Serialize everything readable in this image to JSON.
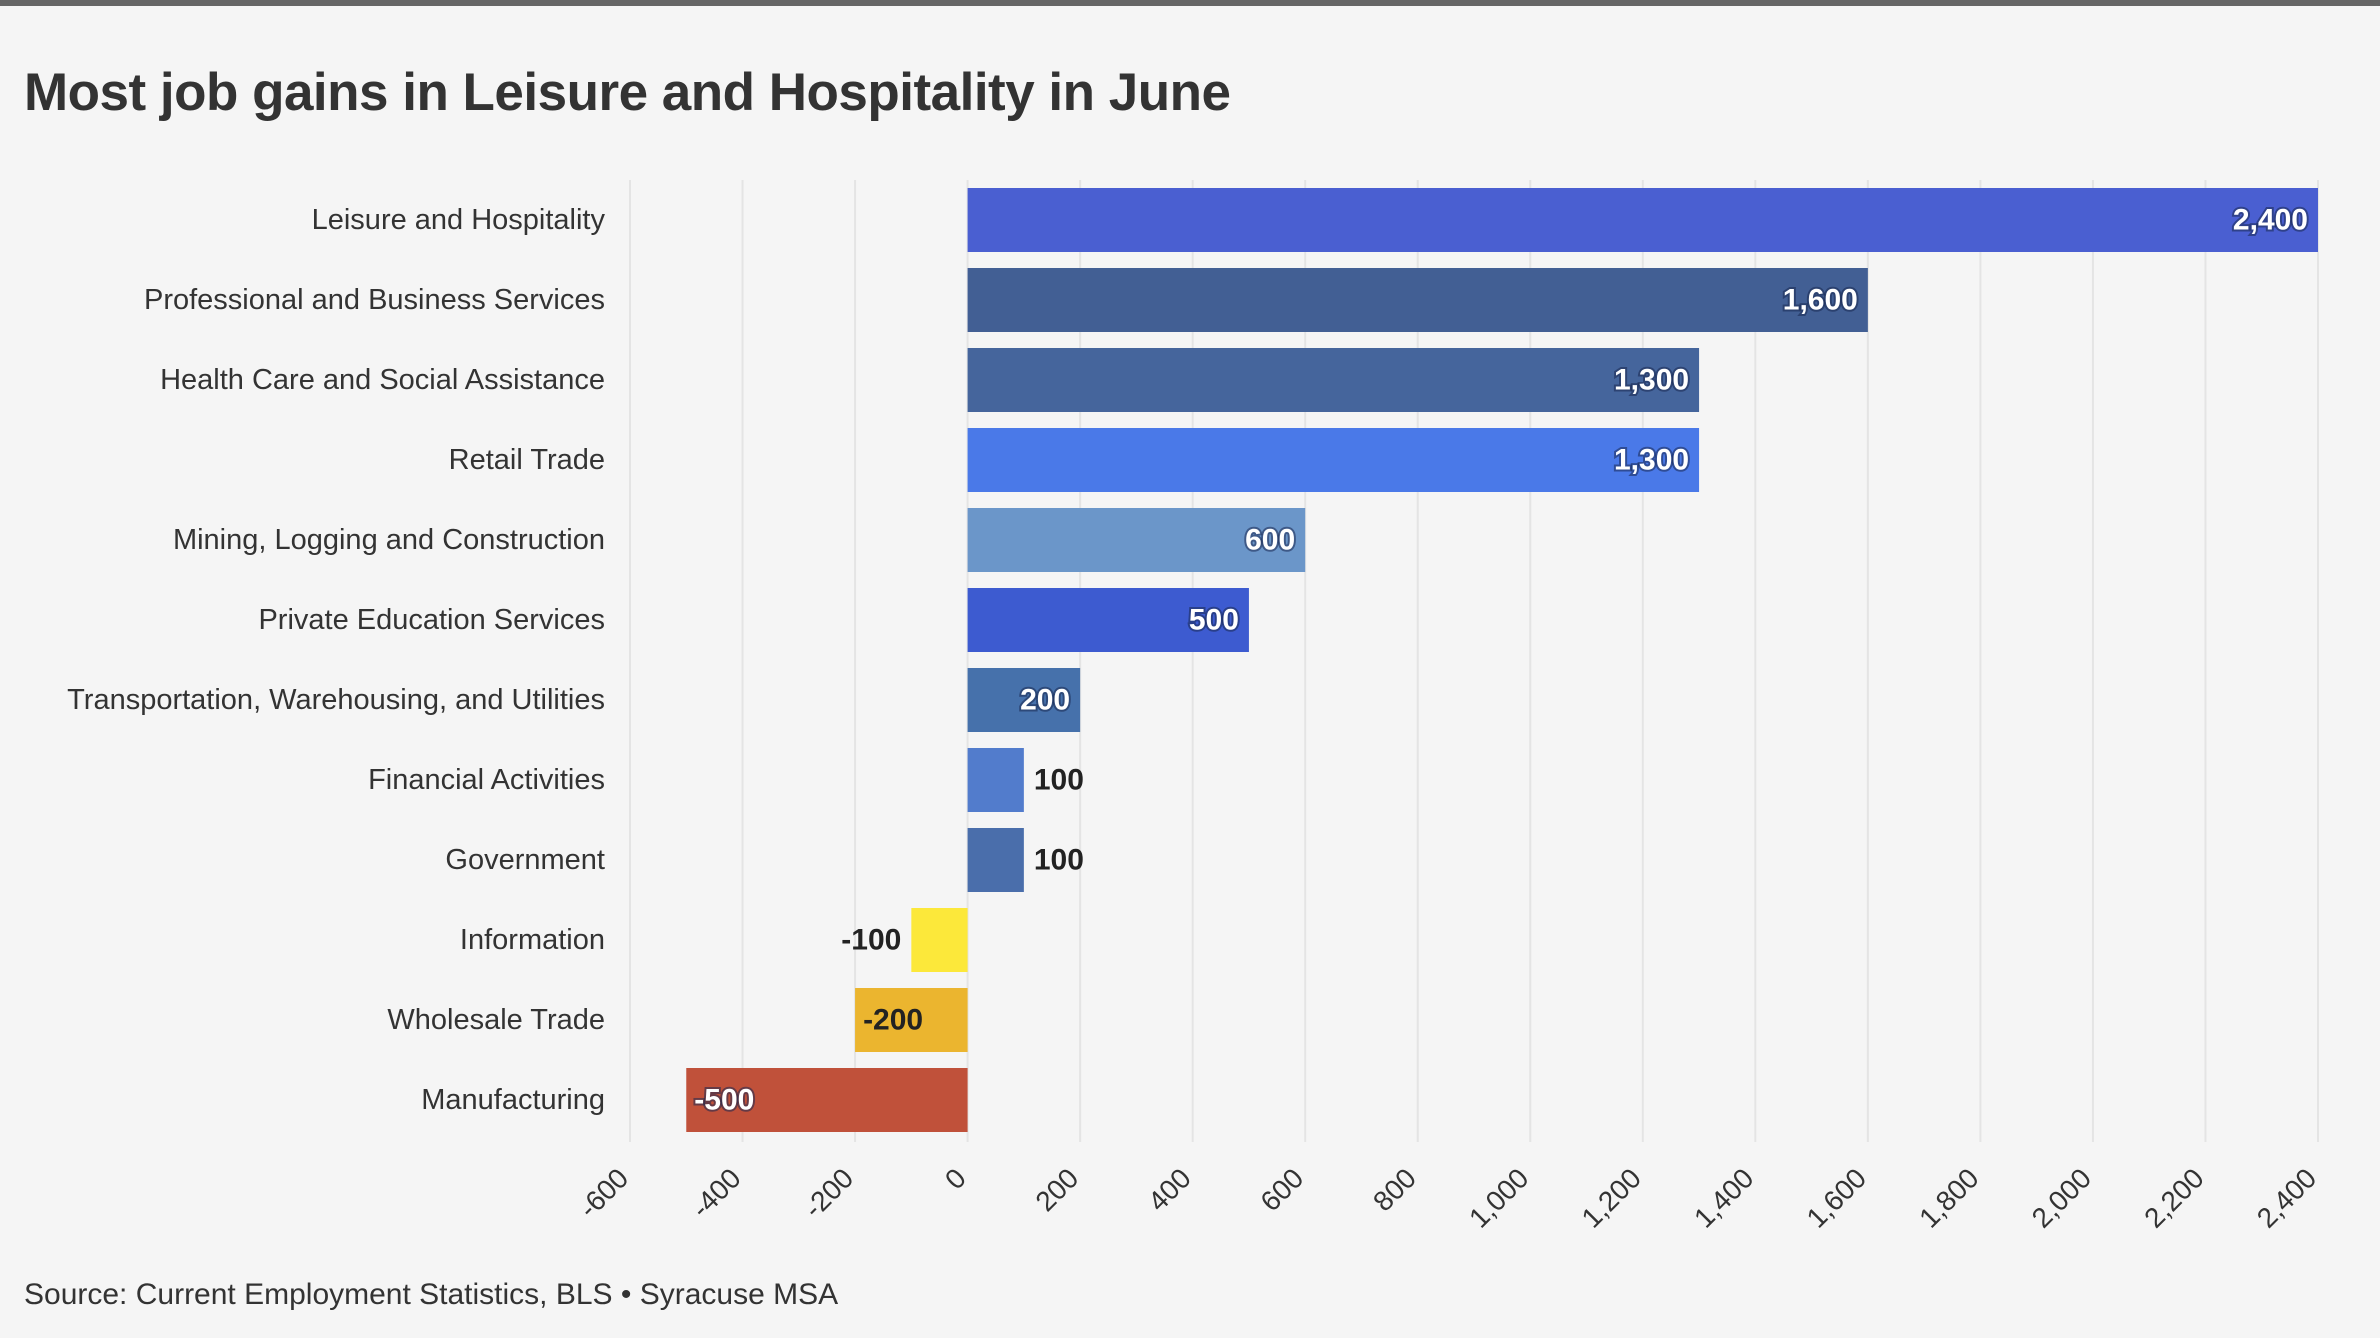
{
  "header": {
    "title": "Most job gains in Leisure and Hospitality in June"
  },
  "footer": {
    "source": "Source: Current Employment Statistics, BLS • Syracuse MSA"
  },
  "chart_data": {
    "type": "bar",
    "orientation": "horizontal",
    "title": "Most job gains in Leisure and Hospitality in June",
    "xlabel": "",
    "ylabel": "",
    "xlim": [
      -600,
      2400
    ],
    "x_ticks": [
      -600,
      -400,
      -200,
      0,
      200,
      400,
      600,
      800,
      1000,
      1200,
      1400,
      1600,
      1800,
      2000,
      2200,
      2400
    ],
    "x_tick_labels": [
      "-600",
      "-400",
      "-200",
      "0",
      "200",
      "400",
      "600",
      "800",
      "1,000",
      "1,200",
      "1,400",
      "1,600",
      "1,800",
      "2,000",
      "2,200",
      "2,400"
    ],
    "grid": true,
    "categories": [
      "Leisure and Hospitality",
      "Professional and Business Services",
      "Health Care and Social Assistance",
      "Retail Trade",
      "Mining, Logging and Construction",
      "Private Education Services",
      "Transportation, Warehousing, and Utilities",
      "Financial Activities",
      "Government",
      "Information",
      "Wholesale Trade",
      "Manufacturing"
    ],
    "values": [
      2400,
      1600,
      1300,
      1300,
      600,
      500,
      200,
      100,
      100,
      -100,
      -200,
      -500
    ],
    "value_labels": [
      "2,400",
      "1,600",
      "1,300",
      "1,300",
      "600",
      "500",
      "200",
      "100",
      "100",
      "-100",
      "-200",
      "-500"
    ],
    "colors": [
      "#4a5fd1",
      "#425f94",
      "#45659c",
      "#4a79e8",
      "#6b96c9",
      "#3d5bd0",
      "#4671ab",
      "#527ccc",
      "#4a6eab",
      "#fce83a",
      "#ebb52f",
      "#c0513a"
    ],
    "label_inside": [
      true,
      true,
      true,
      true,
      true,
      true,
      true,
      false,
      false,
      false,
      true,
      true
    ]
  }
}
